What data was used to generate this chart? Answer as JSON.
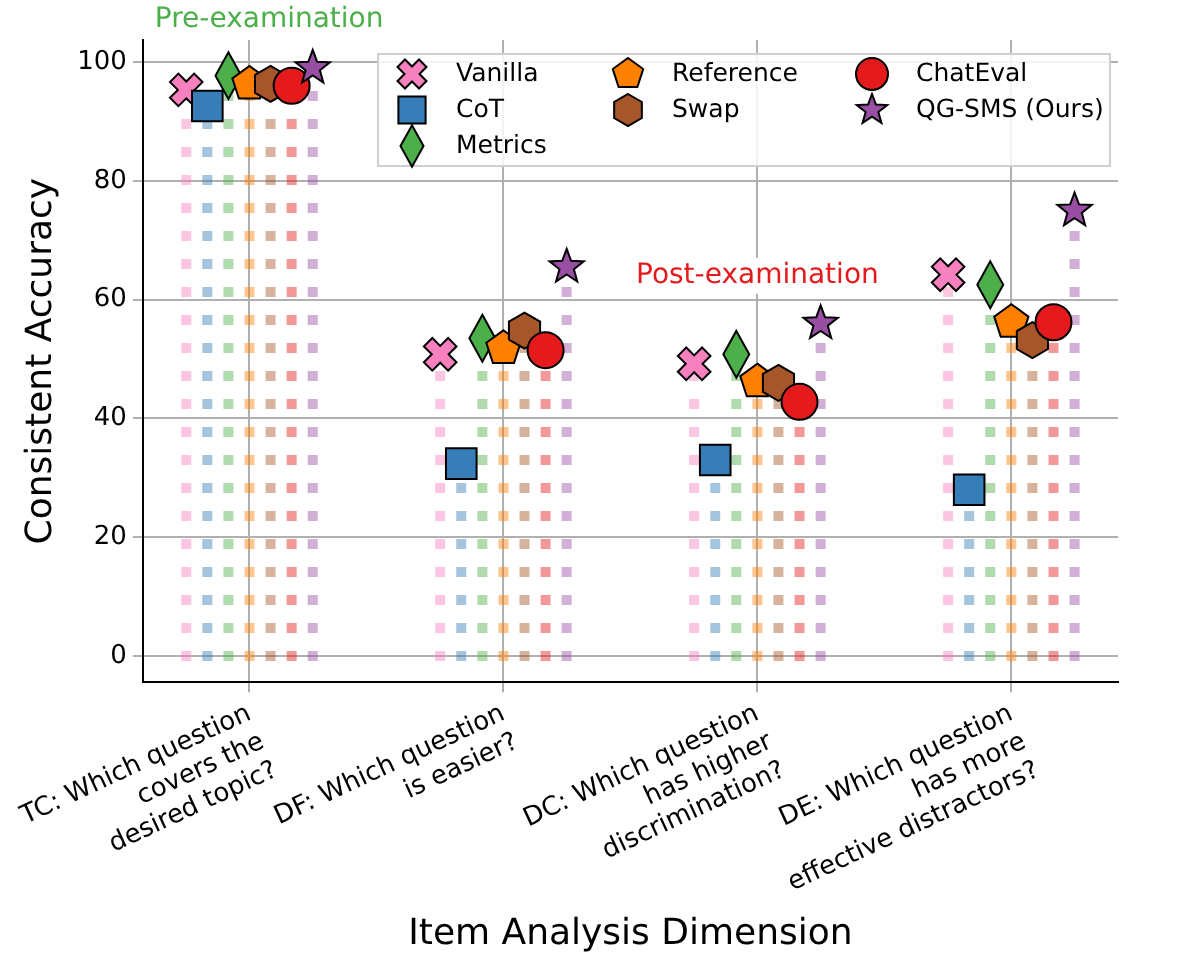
{
  "chart_data": {
    "type": "lollipop",
    "xlabel": "Item Analysis Dimension",
    "ylabel": "Consistent Accuracy",
    "categories": [
      "TC: Which question\ncovers the\ndesired topic?",
      "DF: Which question\nis easier?",
      "DC: Which question\nhas higher\ndiscrimination?",
      "DE: Which question\nhas more\neffective distractors?"
    ],
    "series": [
      {
        "name": "Vanilla",
        "color": "#f781bf",
        "marker": "cross",
        "values": [
          95.3,
          50.8,
          49.2,
          64.2
        ]
      },
      {
        "name": "CoT",
        "color": "#377eb8",
        "marker": "square",
        "values": [
          92.6,
          32.4,
          33,
          28
        ]
      },
      {
        "name": "Metrics",
        "color": "#4daf4a",
        "marker": "diamond",
        "values": [
          97.7,
          53.5,
          50.8,
          62.5
        ]
      },
      {
        "name": "Reference",
        "color": "#ff7f00",
        "values": [
          96.3,
          51.8,
          46.2,
          56.2
        ]
      },
      {
        "name": "Swap",
        "color": "#a65628",
        "values": [
          96.3,
          54.8,
          46,
          53.2
        ]
      },
      {
        "name": "ChatEval",
        "color": "#e41a1c",
        "marker": "circle",
        "values": [
          96,
          51.5,
          42.8,
          56.2
        ]
      },
      {
        "name": "QG-SMS (Ours)",
        "color": "#984ea3",
        "marker": "star",
        "values": [
          99,
          65.5,
          56,
          75
        ]
      }
    ],
    "annotations": [
      "Pre-examination",
      "Post-examination"
    ],
    "ylim": [
      -4.4,
      103.7
    ],
    "yticks": [
      0,
      20,
      40,
      60,
      80,
      100
    ],
    "grid": true,
    "legend": "top right",
    "line_style": "dotted"
  }
}
